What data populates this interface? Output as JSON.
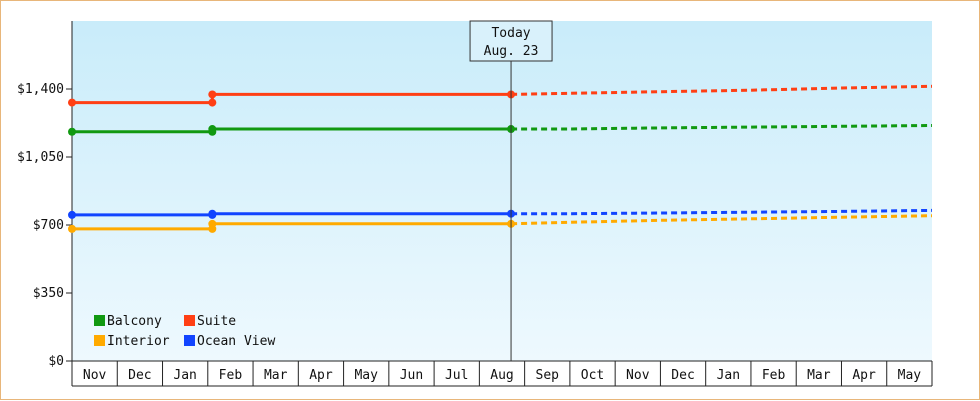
{
  "chart_data": {
    "type": "line",
    "ylim": [
      0,
      1750
    ],
    "y_ticks": [
      {
        "value": 0,
        "label": "$0"
      },
      {
        "value": 350,
        "label": "$350"
      },
      {
        "value": 700,
        "label": "$700"
      },
      {
        "value": 1050,
        "label": "$1,050"
      },
      {
        "value": 1400,
        "label": "$1,400"
      }
    ],
    "x_months": [
      "Nov",
      "Dec",
      "Jan",
      "Feb",
      "Mar",
      "Apr",
      "May",
      "Jun",
      "Jul",
      "Aug",
      "Sep",
      "Oct",
      "Nov",
      "Dec",
      "Jan",
      "Feb",
      "Mar",
      "Apr",
      "May"
    ],
    "today": {
      "line1": "Today",
      "line2": "Aug. 23",
      "month_index": 9.7
    },
    "legend": {
      "placement": "bottom-left"
    },
    "series": [
      {
        "name": "Suite",
        "color": "#ff3f14",
        "actual": [
          [
            0.0,
            1330
          ],
          [
            3.1,
            1330
          ],
          [
            3.1,
            1372
          ],
          [
            9.7,
            1372
          ]
        ],
        "forecast": [
          [
            9.7,
            1372
          ],
          [
            11.0,
            1378
          ],
          [
            13.0,
            1386
          ],
          [
            15.0,
            1394
          ],
          [
            17.0,
            1405
          ],
          [
            19.0,
            1414
          ]
        ]
      },
      {
        "name": "Balcony",
        "color": "#119911",
        "actual": [
          [
            0.0,
            1180
          ],
          [
            3.1,
            1180
          ],
          [
            3.1,
            1194
          ],
          [
            9.7,
            1194
          ]
        ],
        "forecast": [
          [
            9.7,
            1194
          ],
          [
            11.0,
            1194
          ],
          [
            13.0,
            1200
          ],
          [
            15.0,
            1204
          ],
          [
            17.0,
            1208
          ],
          [
            19.0,
            1212
          ]
        ]
      },
      {
        "name": "Ocean View",
        "color": "#1144ff",
        "actual": [
          [
            0.0,
            752
          ],
          [
            3.1,
            752
          ],
          [
            3.1,
            758
          ],
          [
            9.7,
            758
          ]
        ],
        "forecast": [
          [
            9.7,
            758
          ],
          [
            11.0,
            758
          ],
          [
            13.0,
            762
          ],
          [
            15.0,
            766
          ],
          [
            17.0,
            770
          ],
          [
            19.0,
            775
          ]
        ]
      },
      {
        "name": "Interior",
        "color": "#ffaa00",
        "actual": [
          [
            0.0,
            680
          ],
          [
            3.1,
            680
          ],
          [
            3.1,
            706
          ],
          [
            9.7,
            706
          ]
        ],
        "forecast": [
          [
            9.7,
            706
          ],
          [
            11.0,
            714
          ],
          [
            13.0,
            724
          ],
          [
            15.0,
            732
          ],
          [
            17.0,
            740
          ],
          [
            19.0,
            748
          ]
        ]
      }
    ],
    "legend_order": [
      "Balcony",
      "Suite",
      "Interior",
      "Ocean View"
    ]
  }
}
